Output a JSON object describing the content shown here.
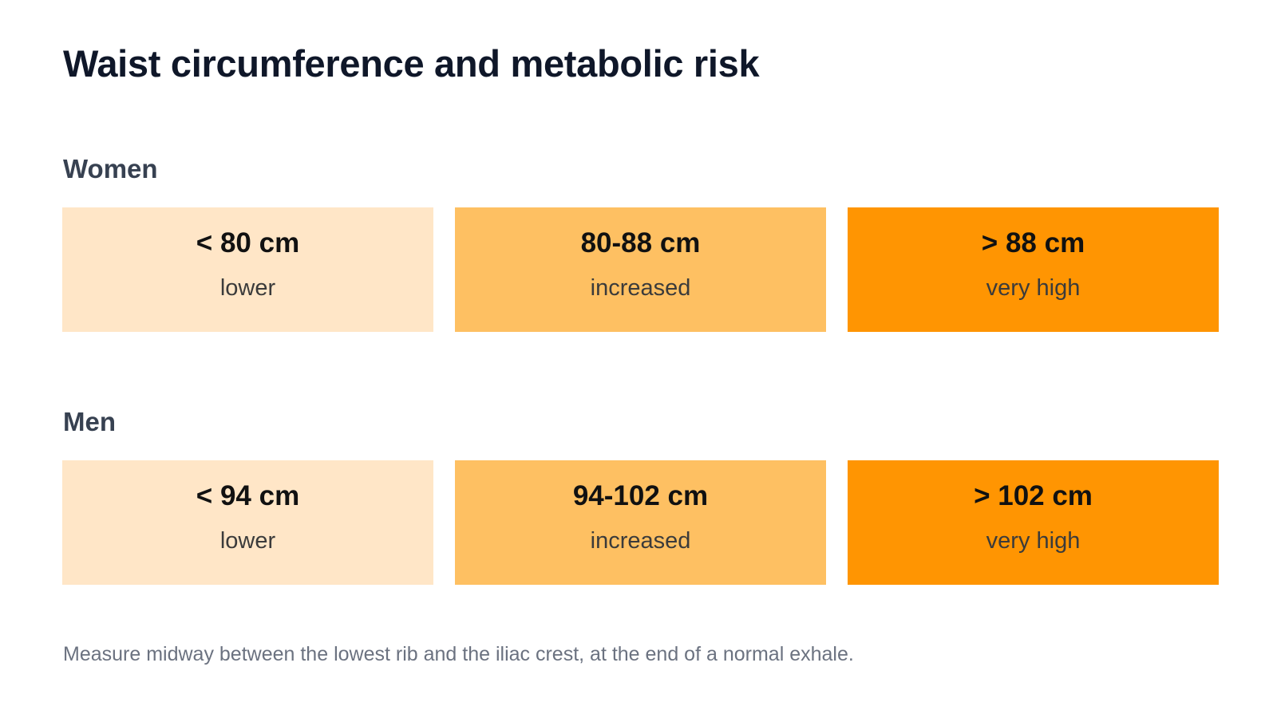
{
  "title": "Waist circumference and metabolic risk",
  "colors": {
    "lower": "#FFE6C7",
    "increased": "#FEC062",
    "very_high": "#FF9502"
  },
  "groups": [
    {
      "label": "Women",
      "cells": [
        {
          "range": "< 80 cm",
          "risk": "lower"
        },
        {
          "range": "80-88 cm",
          "risk": "increased"
        },
        {
          "range": "> 88 cm",
          "risk": "very high"
        }
      ]
    },
    {
      "label": "Men",
      "cells": [
        {
          "range": "< 94 cm",
          "risk": "lower"
        },
        {
          "range": "94-102 cm",
          "risk": "increased"
        },
        {
          "range": "> 102 cm",
          "risk": "very high"
        }
      ]
    }
  ],
  "footnote": "Measure midway between the lowest rib and the iliac crest, at the end of a normal exhale."
}
